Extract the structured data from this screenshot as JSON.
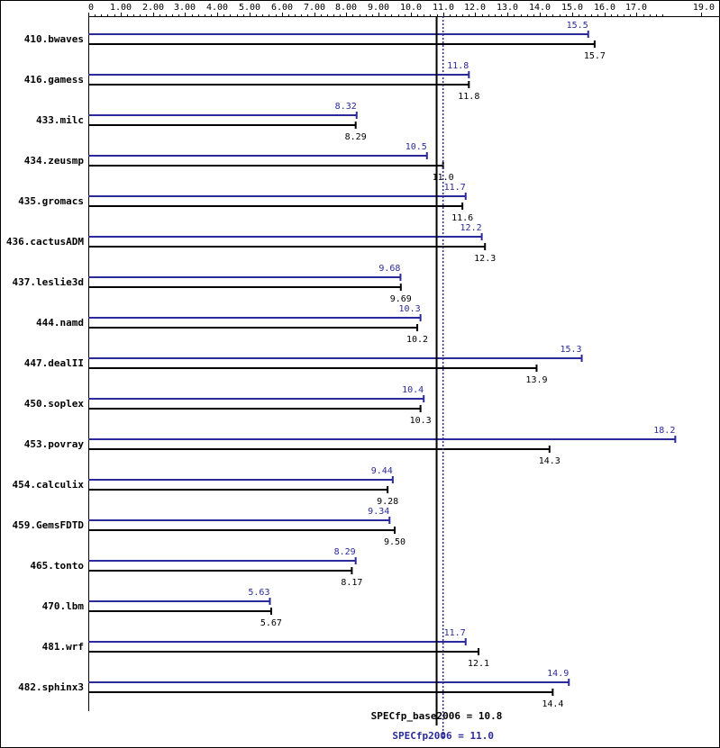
{
  "chart_data": {
    "type": "bar",
    "orientation": "horizontal",
    "xlim": [
      0,
      19.0
    ],
    "grid": false,
    "ticks": [
      "0",
      "1.00",
      "2.00",
      "3.00",
      "4.00",
      "5.00",
      "6.00",
      "7.00",
      "8.00",
      "9.00",
      "10.0",
      "11.0",
      "12.0",
      "13.0",
      "14.0",
      "15.0",
      "16.0",
      "17.0",
      "19.0"
    ],
    "tick_values": [
      0,
      1,
      2,
      3,
      4,
      5,
      6,
      7,
      8,
      9,
      10,
      11,
      12,
      13,
      14,
      15,
      16,
      17,
      19
    ],
    "categories": [
      "410.bwaves",
      "416.gamess",
      "433.milc",
      "434.zeusmp",
      "435.gromacs",
      "436.cactusADM",
      "437.leslie3d",
      "444.namd",
      "447.dealII",
      "450.soplex",
      "453.povray",
      "454.calculix",
      "459.GemsFDTD",
      "465.tonto",
      "470.lbm",
      "481.wrf",
      "482.sphinx3"
    ],
    "series": [
      {
        "key": "peak",
        "color": "#2a2a9a",
        "values": [
          15.5,
          11.8,
          8.32,
          10.5,
          11.7,
          12.2,
          9.68,
          10.3,
          15.3,
          10.4,
          18.2,
          9.44,
          9.34,
          8.29,
          5.63,
          11.7,
          14.9
        ],
        "labels": [
          "15.5",
          "11.8",
          "8.32",
          "10.5",
          "11.7",
          "12.2",
          "9.68",
          "10.3",
          "15.3",
          "10.4",
          "18.2",
          "9.44",
          "9.34",
          "8.29",
          "5.63",
          "11.7",
          "14.9"
        ]
      },
      {
        "key": "base",
        "color": "#000000",
        "values": [
          15.7,
          11.8,
          8.29,
          11.0,
          11.6,
          12.3,
          9.69,
          10.2,
          13.9,
          10.3,
          14.3,
          9.28,
          9.5,
          8.17,
          5.67,
          12.1,
          14.4
        ],
        "labels": [
          "15.7",
          "11.8",
          "8.29",
          "11.0",
          "11.6",
          "12.3",
          "9.69",
          "10.2",
          "13.9",
          "10.3",
          "14.3",
          "9.28",
          "9.50",
          "8.17",
          "5.67",
          "12.1",
          "14.4"
        ]
      }
    ],
    "reference_lines": [
      {
        "key": "base",
        "value": 10.8,
        "label": "SPECfp_base2006 = 10.8",
        "color": "#000000",
        "style": "solid"
      },
      {
        "key": "peak",
        "value": 11.0,
        "label": "SPECfp2006 = 11.0",
        "color": "#2a2a9a",
        "style": "dotted"
      }
    ]
  }
}
